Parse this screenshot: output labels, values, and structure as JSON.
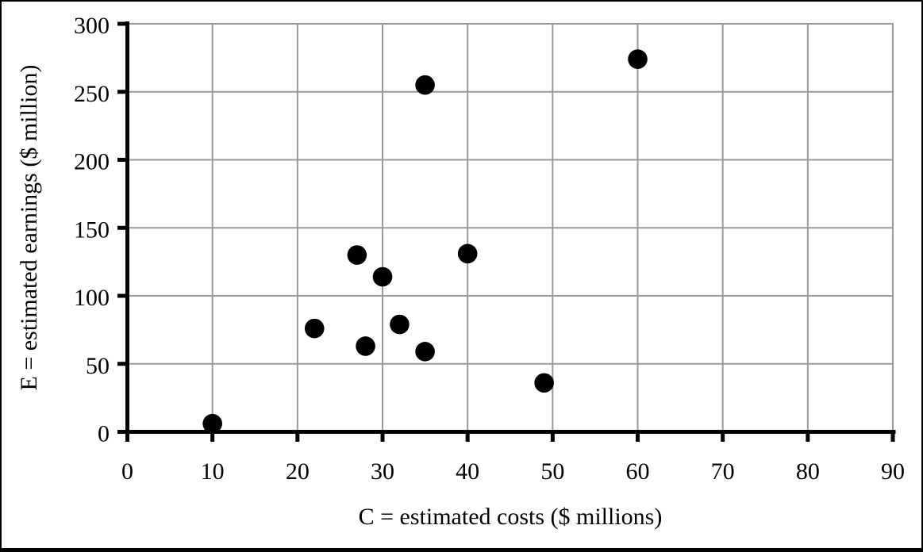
{
  "frame": {
    "background": "#ffffff",
    "border_color": "#000000"
  },
  "chart_data": {
    "type": "scatter",
    "title": "",
    "xlabel": "C = estimated costs ($ millions)",
    "ylabel": "E = estimated earnings ($ million)",
    "xlim": [
      0,
      90
    ],
    "ylim": [
      0,
      300
    ],
    "xticks": [
      0,
      10,
      20,
      30,
      40,
      50,
      60,
      70,
      80,
      90
    ],
    "yticks": [
      0,
      50,
      100,
      150,
      200,
      250,
      300
    ],
    "grid": true,
    "legend": false,
    "colors": {
      "marker": "#000000",
      "gridline": "#999999",
      "axis": "#000000",
      "text": "#000000"
    },
    "points": [
      [
        10,
        6
      ],
      [
        22,
        76
      ],
      [
        27,
        130
      ],
      [
        28,
        63
      ],
      [
        30,
        114
      ],
      [
        32,
        79
      ],
      [
        35,
        59
      ],
      [
        35,
        255
      ],
      [
        40,
        131
      ],
      [
        49,
        36
      ],
      [
        60,
        274
      ]
    ]
  }
}
